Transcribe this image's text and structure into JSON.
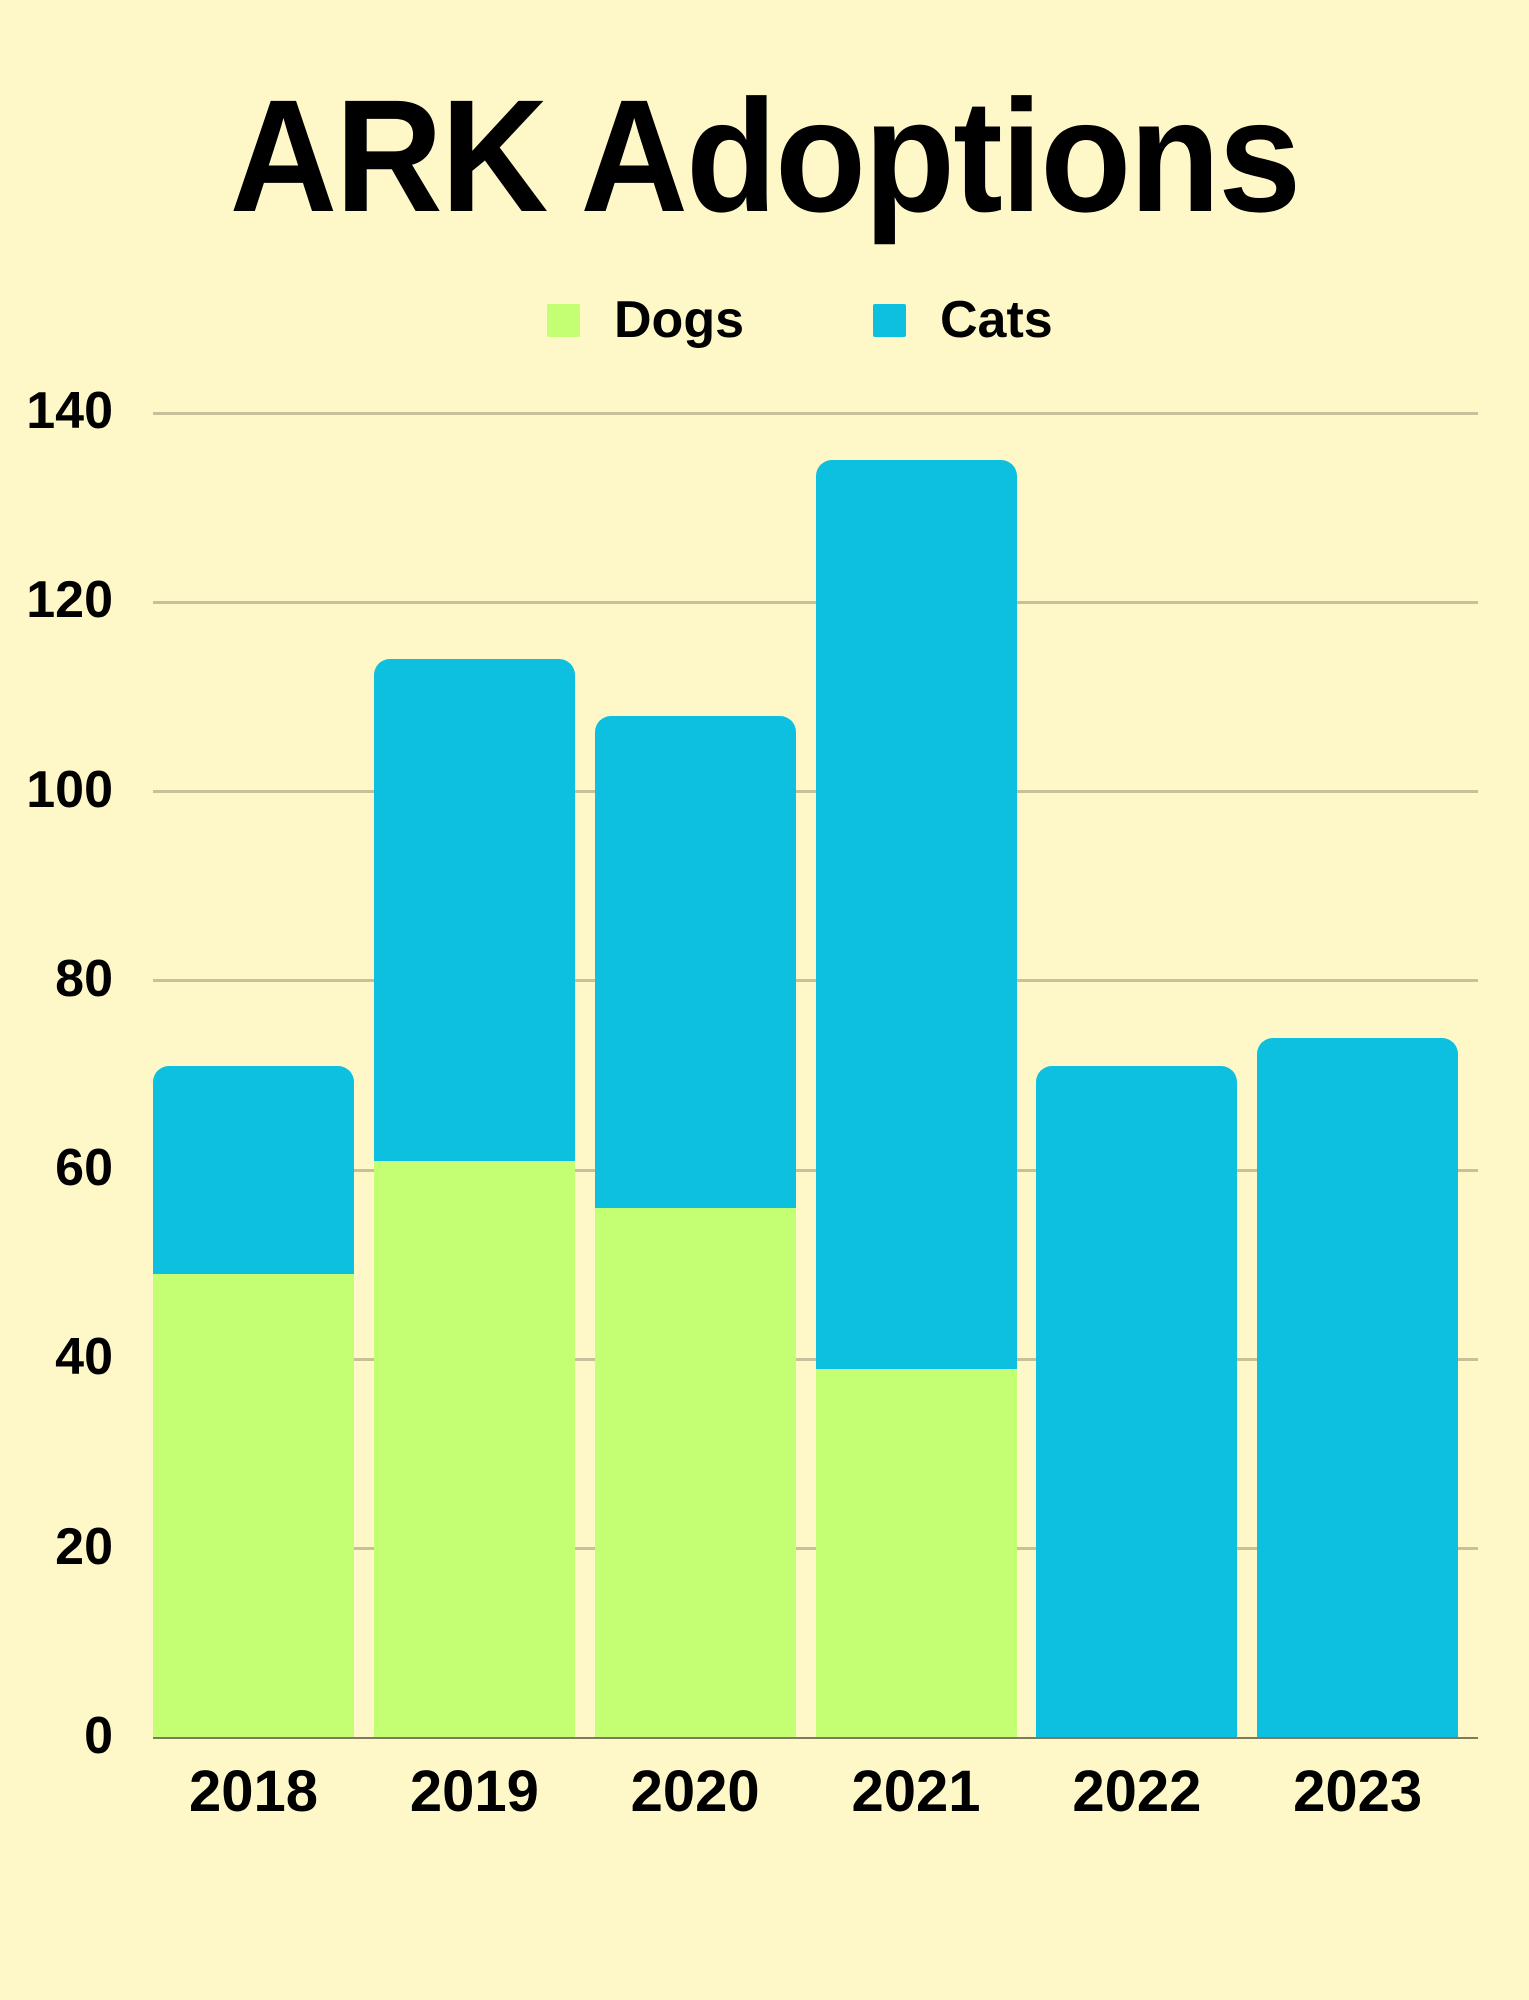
{
  "title": "ARK Adoptions",
  "legend": [
    {
      "label": "Dogs",
      "color": "#C3FE73"
    },
    {
      "label": "Cats",
      "color": "#0EC0DF"
    }
  ],
  "y_axis": {
    "ticks": [
      "0",
      "20",
      "40",
      "60",
      "80",
      "100",
      "120",
      "140"
    ]
  },
  "x_axis": {
    "ticks": [
      "2018",
      "2019",
      "2020",
      "2021",
      "2022",
      "2023"
    ]
  },
  "colors": {
    "background": "#FEF8C8",
    "dogs": "#C3FE73",
    "cats": "#0EC0DF",
    "gridline": "#C6C19A"
  },
  "chart_data": {
    "type": "bar",
    "stacked": true,
    "title": "ARK Adoptions",
    "xlabel": "",
    "ylabel": "",
    "categories": [
      "2018",
      "2019",
      "2020",
      "2021",
      "2022",
      "2023"
    ],
    "series": [
      {
        "name": "Dogs",
        "color": "#C3FE73",
        "values": [
          49,
          61,
          56,
          39,
          0,
          0
        ]
      },
      {
        "name": "Cats",
        "color": "#0EC0DF",
        "values": [
          22,
          53,
          52,
          96,
          71,
          74
        ]
      }
    ],
    "totals": [
      71,
      114,
      108,
      135,
      71,
      74
    ],
    "ylim": [
      0,
      140
    ],
    "yticks": [
      0,
      20,
      40,
      60,
      80,
      100,
      120,
      140
    ],
    "grid": true,
    "legend_position": "top"
  }
}
